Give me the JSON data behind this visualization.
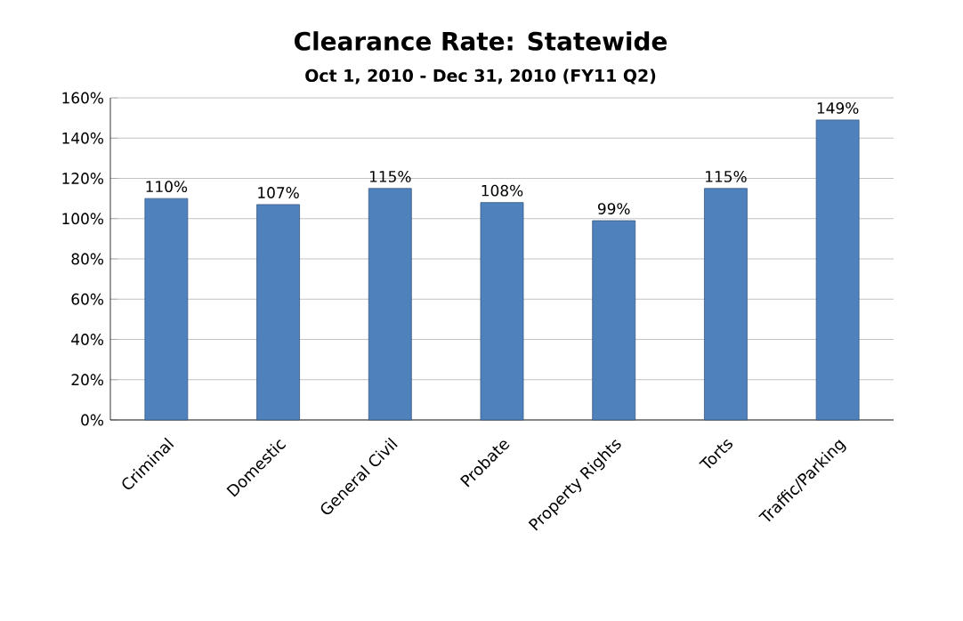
{
  "chart_data": {
    "type": "bar",
    "title": "Clearance Rate: Statewide",
    "subtitle": "Oct 1, 2010 - Dec 31, 2010 (FY11 Q2)",
    "categories": [
      "Criminal",
      "Domestic",
      "General Civil",
      "Probate",
      "Property Rights",
      "Torts",
      "Traffic/Parking"
    ],
    "values": [
      110,
      107,
      115,
      108,
      99,
      115,
      149
    ],
    "value_labels": [
      "110%",
      "107%",
      "115%",
      "108%",
      "99%",
      "115%",
      "149%"
    ],
    "color": "#4f81bd",
    "ylim": [
      0,
      160
    ],
    "yticks": [
      {
        "value": 0,
        "label": "0%"
      },
      {
        "value": 20,
        "label": "20%"
      },
      {
        "value": 40,
        "label": "40%"
      },
      {
        "value": 60,
        "label": "60%"
      },
      {
        "value": 80,
        "label": "80%"
      },
      {
        "value": 100,
        "label": "100%"
      },
      {
        "value": 120,
        "label": "120%"
      },
      {
        "value": 140,
        "label": "140%"
      },
      {
        "value": 160,
        "label": "160%"
      }
    ],
    "grid": "y"
  }
}
